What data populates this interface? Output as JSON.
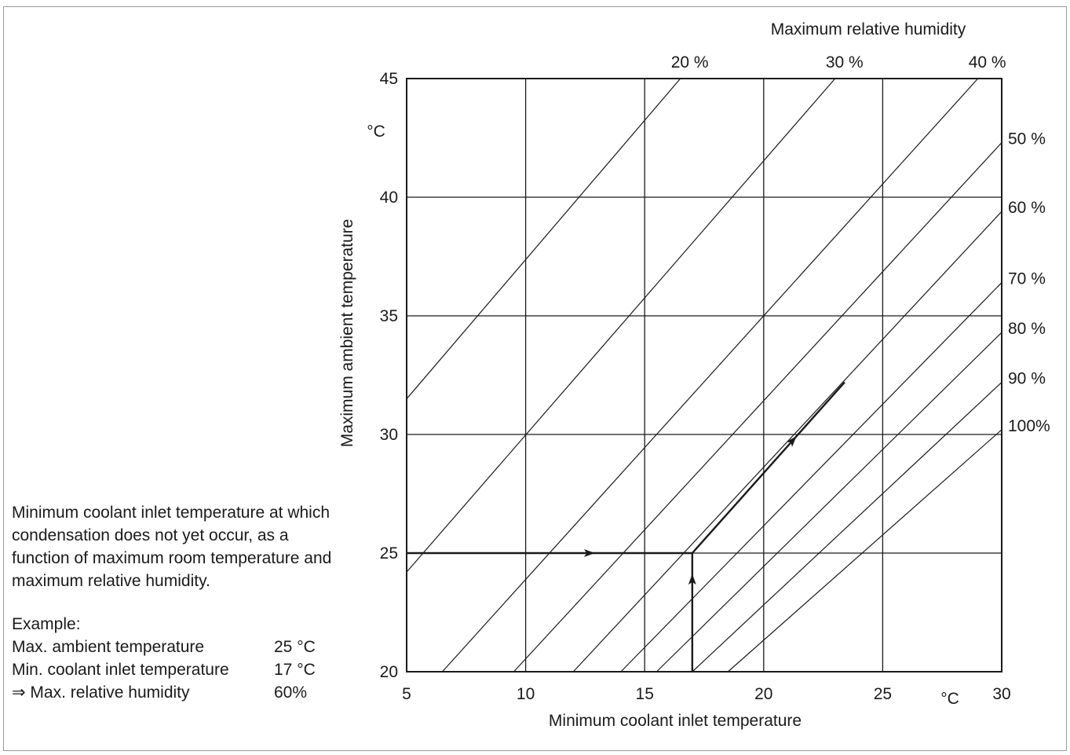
{
  "chart_data": {
    "type": "line",
    "title": "Maximum relative humidity",
    "xlabel": "Minimum coolant inlet temperature",
    "ylabel": "Maximum ambient temperature",
    "x_unit": "°C",
    "y_unit": "°C",
    "xlim": [
      5,
      30
    ],
    "ylim": [
      20,
      45
    ],
    "x_ticks": [
      "5",
      "10",
      "15",
      "20",
      "25",
      "30"
    ],
    "y_ticks": [
      "20",
      "25",
      "30",
      "35",
      "40",
      "45"
    ],
    "grid": true,
    "series": [
      {
        "name": "20 %",
        "rh": 20,
        "x": [
          5.0,
          16.5
        ],
        "y": [
          31.5,
          45.0
        ]
      },
      {
        "name": "30 %",
        "rh": 30,
        "x": [
          5.0,
          23.0
        ],
        "y": [
          24.2,
          45.0
        ]
      },
      {
        "name": "40 %",
        "rh": 40,
        "x": [
          6.5,
          29.0
        ],
        "y": [
          20.0,
          45.0
        ]
      },
      {
        "name": "50 %",
        "rh": 50,
        "x": [
          9.5,
          30.0
        ],
        "y": [
          20.0,
          42.3
        ]
      },
      {
        "name": "60 %",
        "rh": 60,
        "x": [
          12.0,
          30.0
        ],
        "y": [
          20.0,
          39.4
        ]
      },
      {
        "name": "70 %",
        "rh": 70,
        "x": [
          14.0,
          30.0
        ],
        "y": [
          20.0,
          36.4
        ]
      },
      {
        "name": "80 %",
        "rh": 80,
        "x": [
          15.5,
          30.0
        ],
        "y": [
          20.0,
          34.3
        ]
      },
      {
        "name": "90 %",
        "rh": 90,
        "x": [
          17.0,
          30.0
        ],
        "y": [
          20.0,
          32.2
        ]
      },
      {
        "name": "100%",
        "rh": 100,
        "x": [
          18.5,
          30.0
        ],
        "y": [
          20.0,
          30.2
        ]
      }
    ],
    "example_path": {
      "x": [
        5,
        17,
        17,
        23.4
      ],
      "y": [
        25,
        25,
        20,
        32.2
      ]
    }
  },
  "description": "Minimum coolant inlet temperature at which condensation does not yet occur, as a function of maximum room temperature and maximum relative humidity.",
  "example": {
    "heading": "Example:",
    "rows": [
      {
        "label": "Max. ambient temperature",
        "value": "25 °C"
      },
      {
        "label": "Min. coolant inlet temperature",
        "value": "17 °C"
      },
      {
        "label": "⇒ Max. relative humidity",
        "value": "60%"
      }
    ]
  },
  "colors": {
    "line": "#1a1a1a",
    "grid": "#1a1a1a",
    "frame": "#9a9a9a"
  }
}
